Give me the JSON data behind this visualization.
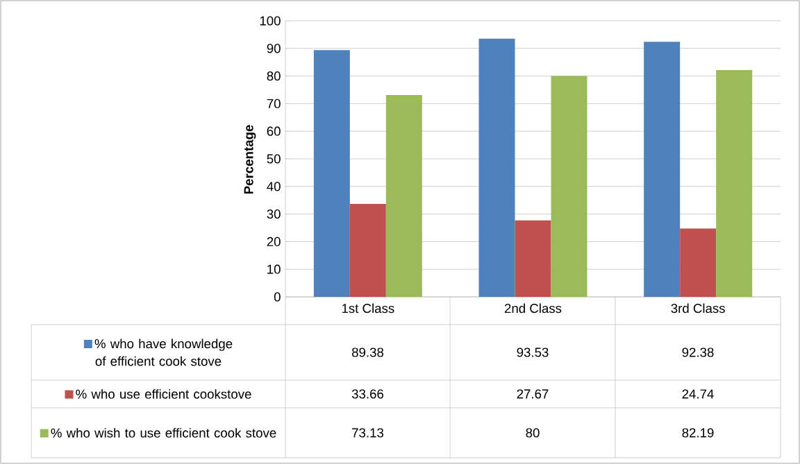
{
  "chart_data": {
    "type": "bar",
    "ylabel": "Percentage",
    "categories": [
      "1st Class",
      "2nd Class",
      "3rd Class"
    ],
    "series": [
      {
        "name": "% who have knowledge of efficient cook stove",
        "color": "#4f81bd",
        "values": [
          89.38,
          93.53,
          92.38
        ]
      },
      {
        "name": "% who use efficient cookstove",
        "color": "#c0504d",
        "values": [
          33.66,
          27.67,
          24.74
        ]
      },
      {
        "name": "% who wish to use efficient cook stove",
        "color": "#9bbb59",
        "values": [
          73.13,
          80,
          82.19
        ]
      }
    ],
    "ylim": [
      0,
      100
    ],
    "yticks": [
      0,
      10,
      20,
      30,
      40,
      50,
      60,
      70,
      80,
      90,
      100
    ],
    "grid": "y",
    "legend": "bottom",
    "data_labels": true
  }
}
